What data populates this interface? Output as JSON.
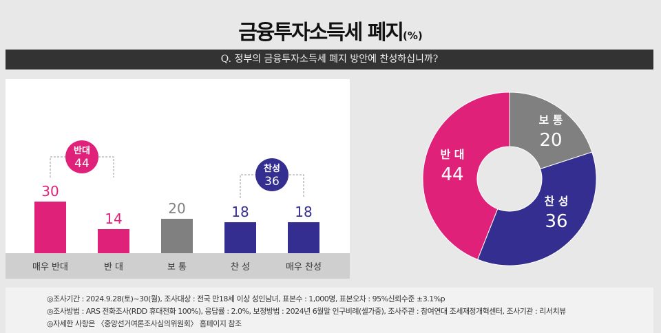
{
  "title": "금융투자소득세 폐지",
  "title_unit": "(%)",
  "question": "Q. 정부의 금융투자소득세 폐지 방안에 찬성하십니까?",
  "colors": {
    "oppose": "#e0217a",
    "neutral": "#808080",
    "support": "#332e8f"
  },
  "chart_data": [
    {
      "type": "bar",
      "categories": [
        "매우 반대",
        "반 대",
        "보 통",
        "찬 성",
        "매우 찬성"
      ],
      "values": [
        30,
        14,
        20,
        18,
        18
      ],
      "groups": [
        {
          "label": "반대",
          "value": 44,
          "members": [
            0,
            1
          ]
        },
        {
          "label": "찬성",
          "value": 36,
          "members": [
            3,
            4
          ]
        }
      ]
    },
    {
      "type": "pie",
      "donut": true,
      "labels": [
        "보 통",
        "찬 성",
        "반 대"
      ],
      "values": [
        20,
        36,
        44
      ]
    }
  ],
  "footnotes": [
    "◎조사기간 : 2024.9.28(토)~30(월), 조사대상 : 전국 만18세 이상 성인남녀, 표본수 : 1,000명, 표본오차 : 95%신뢰수준 ±3.1%p",
    "◎조사방법 : ARS 전화조사(RDD 휴대전화 100%), 응답률 : 2.0%, 보정방법 : 2024년 6월말 인구비례(셀가중), 조사주관 : 참여연대 조세재정개혁센터, 조사기관 : 리서치뷰",
    "◎자세한 사항은 〈중앙선거여론조사심의위원회〉 홈페이지 참조"
  ]
}
